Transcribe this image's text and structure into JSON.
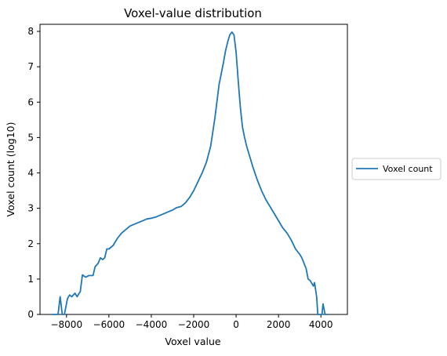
{
  "chart_data": {
    "type": "line",
    "title": "Voxel-value distribution",
    "xlabel": "Voxel value",
    "ylabel": "Voxel count (log10)",
    "xlim": [
      -9250,
      5250
    ],
    "ylim": [
      0,
      8.2
    ],
    "xticks": [
      -8000,
      -6000,
      -4000,
      -2000,
      0,
      2000,
      4000
    ],
    "xtick_labels": [
      "−8000",
      "−6000",
      "−4000",
      "−2000",
      "0",
      "2000",
      "4000"
    ],
    "yticks": [
      0,
      1,
      2,
      3,
      4,
      5,
      6,
      7,
      8
    ],
    "ytick_labels": [
      "0",
      "1",
      "2",
      "3",
      "4",
      "5",
      "6",
      "7",
      "8"
    ],
    "grid": false,
    "legend": {
      "position": "outside-right",
      "entries": [
        "Voxel count"
      ]
    },
    "series": [
      {
        "name": "Voxel count",
        "color": "#1f77b4",
        "x": [
          -8700,
          -8500,
          -8400,
          -8300,
          -8200,
          -8100,
          -7950,
          -7850,
          -7750,
          -7600,
          -7500,
          -7350,
          -7250,
          -7100,
          -6950,
          -6850,
          -6750,
          -6650,
          -6500,
          -6400,
          -6300,
          -6200,
          -6100,
          -6000,
          -5800,
          -5600,
          -5400,
          -5200,
          -5000,
          -4800,
          -4600,
          -4400,
          -4200,
          -4000,
          -3800,
          -3600,
          -3400,
          -3200,
          -3000,
          -2800,
          -2600,
          -2400,
          -2200,
          -2000,
          -1800,
          -1600,
          -1400,
          -1200,
          -1000,
          -800,
          -600,
          -500,
          -400,
          -300,
          -200,
          -100,
          0,
          100,
          200,
          300,
          400,
          500,
          600,
          800,
          1000,
          1200,
          1400,
          1600,
          1800,
          2000,
          2200,
          2400,
          2600,
          2800,
          3000,
          3100,
          3200,
          3300,
          3400,
          3500,
          3550,
          3650,
          3700,
          3800,
          3850,
          3950,
          4050,
          4100,
          4200,
          4300
        ],
        "y": [
          0.0,
          0.0,
          0.0,
          0.5,
          0.0,
          0.0,
          0.45,
          0.55,
          0.5,
          0.6,
          0.5,
          0.65,
          1.12,
          1.05,
          1.1,
          1.1,
          1.1,
          1.35,
          1.45,
          1.6,
          1.55,
          1.6,
          1.85,
          1.85,
          1.95,
          2.15,
          2.3,
          2.4,
          2.5,
          2.55,
          2.6,
          2.65,
          2.7,
          2.72,
          2.75,
          2.8,
          2.85,
          2.9,
          2.95,
          3.02,
          3.05,
          3.15,
          3.3,
          3.5,
          3.75,
          4.0,
          4.3,
          4.75,
          5.55,
          6.5,
          7.1,
          7.45,
          7.7,
          7.9,
          7.98,
          7.9,
          7.4,
          6.6,
          5.85,
          5.3,
          5.0,
          4.75,
          4.55,
          4.15,
          3.8,
          3.5,
          3.25,
          3.05,
          2.85,
          2.65,
          2.45,
          2.3,
          2.1,
          1.85,
          1.7,
          1.6,
          1.45,
          1.3,
          1.0,
          0.95,
          0.9,
          0.8,
          0.9,
          0.5,
          0.0,
          0.0,
          0.0,
          0.3,
          0.0,
          0.0
        ]
      }
    ]
  }
}
